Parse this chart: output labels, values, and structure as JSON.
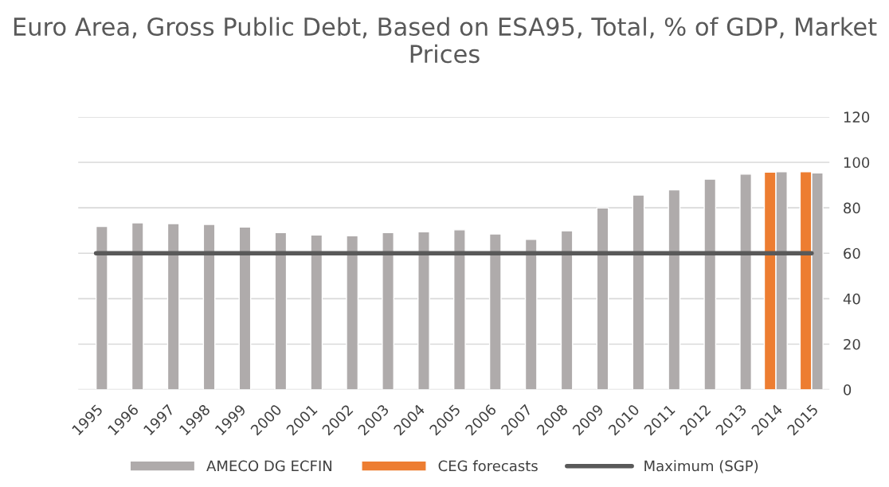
{
  "chart_data": {
    "type": "bar",
    "title": "Euro Area, Gross Public Debt, Based on ESA95, Total, % of GDP, Market Prices",
    "categories": [
      "1995",
      "1996",
      "1997",
      "1998",
      "1999",
      "2000",
      "2001",
      "2002",
      "2003",
      "2004",
      "2005",
      "2006",
      "2007",
      "2008",
      "2009",
      "2010",
      "2011",
      "2012",
      "2013",
      "2014",
      "2015"
    ],
    "series": [
      {
        "name": "AMECO DG ECFIN",
        "color": "#afabab",
        "values": [
          71.8,
          73.4,
          73.0,
          72.7,
          71.5,
          69.1,
          68.0,
          67.7,
          69.1,
          69.4,
          70.3,
          68.5,
          66.1,
          69.9,
          79.9,
          85.6,
          87.9,
          92.6,
          94.8,
          95.9,
          95.3
        ]
      },
      {
        "name": "CEG forecasts",
        "color": "#ed7d31",
        "values": [
          null,
          null,
          null,
          null,
          null,
          null,
          null,
          null,
          null,
          null,
          null,
          null,
          null,
          null,
          null,
          null,
          null,
          null,
          null,
          95.7,
          95.9
        ]
      },
      {
        "name": "Maximum (SGP)",
        "type": "line",
        "color": "#595959",
        "values": [
          60,
          60,
          60,
          60,
          60,
          60,
          60,
          60,
          60,
          60,
          60,
          60,
          60,
          60,
          60,
          60,
          60,
          60,
          60,
          60,
          60
        ]
      }
    ],
    "ylim": [
      0,
      120
    ],
    "yticks": [
      0,
      20,
      40,
      60,
      80,
      100,
      120
    ],
    "grid": "y",
    "legend": "bottom"
  }
}
